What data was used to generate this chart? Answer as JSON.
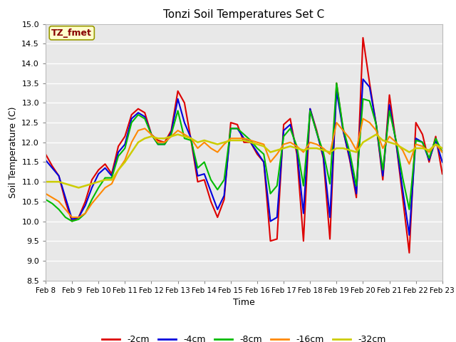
{
  "title": "Tonzi Soil Temperatures Set C",
  "xlabel": "Time",
  "ylabel": "Soil Temperature (C)",
  "ylim": [
    8.5,
    15.0
  ],
  "yticks": [
    8.5,
    9.0,
    9.5,
    10.0,
    10.5,
    11.0,
    11.5,
    12.0,
    12.5,
    13.0,
    13.5,
    14.0,
    14.5,
    15.0
  ],
  "xtick_labels": [
    "Feb 8",
    "Feb 9",
    "Feb 10",
    "Feb 11",
    "Feb 12",
    "Feb 13",
    "Feb 14",
    "Feb 15",
    "Feb 16",
    "Feb 17",
    "Feb 18",
    "Feb 19",
    "Feb 20",
    "Feb 21",
    "Feb 22",
    "Feb 23"
  ],
  "annotation_label": "TZ_fmet",
  "annotation_bg": "#ffffcc",
  "annotation_border": "#999900",
  "annotation_text_color": "#880000",
  "background_color": "#ffffff",
  "plot_bg_color": "#e8e8e8",
  "grid_color": "#ffffff",
  "lines": [
    {
      "label": "-2cm",
      "color": "#dd0000",
      "linewidth": 1.5,
      "y": [
        11.7,
        11.4,
        11.15,
        10.5,
        10.0,
        10.1,
        10.5,
        11.05,
        11.3,
        11.45,
        11.2,
        11.9,
        12.15,
        12.7,
        12.85,
        12.75,
        12.2,
        12.05,
        12.0,
        12.3,
        13.3,
        13.0,
        12.05,
        11.0,
        11.05,
        10.5,
        10.1,
        10.55,
        12.5,
        12.45,
        12.0,
        12.0,
        11.7,
        11.5,
        9.5,
        9.55,
        12.45,
        12.6,
        11.7,
        9.5,
        12.85,
        12.3,
        11.6,
        9.55,
        13.5,
        12.3,
        11.55,
        10.6,
        14.65,
        13.5,
        12.45,
        11.05,
        13.2,
        12.0,
        10.6,
        9.2,
        12.5,
        12.2,
        11.5,
        12.15,
        11.2
      ]
    },
    {
      "label": "-4cm",
      "color": "#0000dd",
      "linewidth": 1.5,
      "y": [
        11.55,
        11.35,
        11.15,
        10.6,
        10.05,
        10.1,
        10.4,
        10.85,
        11.2,
        11.35,
        11.15,
        11.75,
        11.95,
        12.6,
        12.75,
        12.65,
        12.2,
        11.95,
        11.95,
        12.25,
        13.1,
        12.5,
        12.1,
        11.15,
        11.2,
        10.75,
        10.3,
        10.65,
        12.35,
        12.35,
        12.1,
        12.0,
        11.75,
        11.5,
        10.0,
        10.1,
        12.3,
        12.45,
        11.8,
        10.2,
        12.85,
        12.25,
        11.65,
        10.1,
        13.3,
        12.3,
        11.6,
        10.7,
        13.6,
        13.4,
        12.45,
        11.15,
        12.95,
        12.0,
        10.8,
        9.65,
        12.1,
        12.0,
        11.55,
        12.05,
        11.5
      ]
    },
    {
      "label": "-8cm",
      "color": "#00bb00",
      "linewidth": 1.5,
      "y": [
        10.55,
        10.45,
        10.3,
        10.1,
        10.0,
        10.05,
        10.2,
        10.55,
        10.85,
        11.1,
        11.1,
        11.65,
        11.85,
        12.5,
        12.7,
        12.6,
        12.2,
        11.95,
        11.95,
        12.2,
        12.8,
        12.1,
        12.05,
        11.35,
        11.5,
        11.05,
        10.8,
        11.05,
        12.35,
        12.35,
        12.2,
        12.05,
        11.85,
        11.7,
        10.7,
        10.9,
        12.15,
        12.35,
        11.9,
        10.9,
        12.8,
        12.25,
        11.75,
        10.95,
        13.5,
        12.35,
        11.75,
        10.9,
        13.1,
        13.05,
        12.45,
        11.3,
        12.8,
        12.05,
        11.1,
        10.3,
        12.05,
        12.0,
        11.6,
        12.1,
        11.75
      ]
    },
    {
      "label": "-16cm",
      "color": "#ff8800",
      "linewidth": 1.5,
      "y": [
        10.7,
        10.6,
        10.5,
        10.3,
        10.1,
        10.1,
        10.2,
        10.45,
        10.65,
        10.85,
        10.95,
        11.3,
        11.55,
        12.0,
        12.3,
        12.35,
        12.2,
        12.0,
        12.0,
        12.15,
        12.3,
        12.2,
        12.1,
        11.85,
        12.0,
        11.85,
        11.75,
        11.95,
        12.1,
        12.1,
        12.1,
        12.05,
        12.0,
        11.95,
        11.5,
        11.7,
        11.95,
        12.0,
        11.9,
        11.75,
        12.0,
        11.95,
        11.85,
        11.7,
        12.5,
        12.3,
        12.1,
        11.8,
        12.6,
        12.5,
        12.3,
        11.85,
        12.15,
        12.0,
        11.8,
        11.45,
        11.95,
        11.9,
        11.75,
        11.95,
        11.75
      ]
    },
    {
      "label": "-32cm",
      "color": "#cccc00",
      "linewidth": 1.8,
      "y": [
        11.0,
        11.0,
        11.0,
        10.95,
        10.9,
        10.85,
        10.9,
        10.95,
        11.0,
        11.05,
        11.05,
        11.3,
        11.5,
        11.75,
        12.0,
        12.1,
        12.15,
        12.1,
        12.1,
        12.15,
        12.2,
        12.15,
        12.1,
        12.0,
        12.05,
        12.0,
        11.95,
        12.0,
        12.05,
        12.05,
        12.05,
        12.0,
        11.95,
        11.9,
        11.75,
        11.8,
        11.85,
        11.9,
        11.85,
        11.8,
        11.85,
        11.85,
        11.8,
        11.75,
        11.85,
        11.85,
        11.8,
        11.75,
        12.0,
        12.1,
        12.2,
        12.05,
        12.0,
        11.95,
        11.85,
        11.75,
        11.85,
        11.85,
        11.8,
        11.95,
        11.85
      ]
    }
  ],
  "legend_entries": [
    {
      "label": "-2cm",
      "color": "#dd0000"
    },
    {
      "label": "-4cm",
      "color": "#0000dd"
    },
    {
      "label": "-8cm",
      "color": "#00bb00"
    },
    {
      "label": "-16cm",
      "color": "#ff8800"
    },
    {
      "label": "-32cm",
      "color": "#cccc00"
    }
  ]
}
